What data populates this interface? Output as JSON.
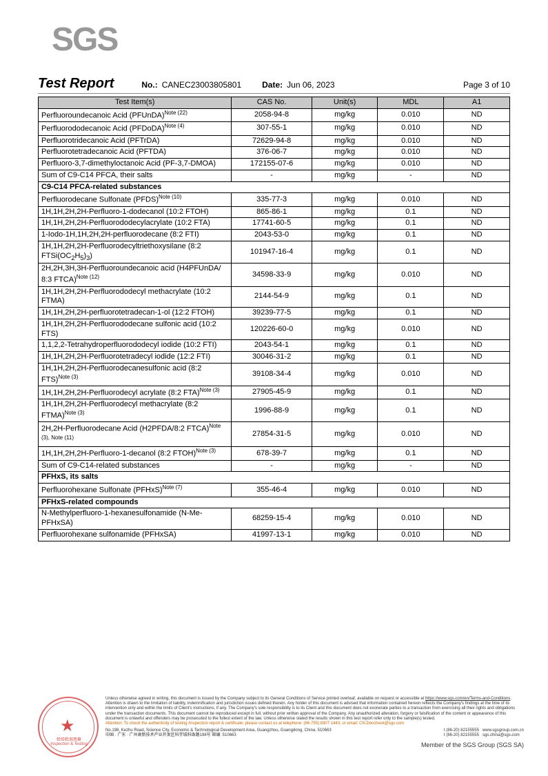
{
  "logo": {
    "text": "SGS"
  },
  "header": {
    "title": "Test Report",
    "no_label": "No.:",
    "no_value": "CANEC23003805801",
    "date_label": "Date:",
    "date_value": "Jun 06, 2023",
    "page": "Page 3 of 10"
  },
  "table": {
    "headers": [
      "Test Item(s)",
      "CAS No.",
      "Unit(s)",
      "MDL",
      "A1"
    ],
    "rows": [
      {
        "t": "d",
        "item": "Perfluoroundecanoic Acid (PFUnDA)<sup>Note (22)</sup>",
        "cas": "2058-94-8",
        "unit": "mg/kg",
        "mdl": "0.010",
        "a1": "ND"
      },
      {
        "t": "d",
        "item": "Perfluorododecanoic Acid (PFDoDA)<sup>Note (4)</sup>",
        "cas": "307-55-1",
        "unit": "mg/kg",
        "mdl": "0.010",
        "a1": "ND"
      },
      {
        "t": "d",
        "item": "Perfluorotridecanoic Acid (PFTrDA)",
        "cas": "72629-94-8",
        "unit": "mg/kg",
        "mdl": "0.010",
        "a1": "ND"
      },
      {
        "t": "d",
        "item": "Perfluorotetradecanoic Acid (PFTDA)",
        "cas": "376-06-7",
        "unit": "mg/kg",
        "mdl": "0.010",
        "a1": "ND"
      },
      {
        "t": "d",
        "item": "Perfluoro-3,7-dimethyloctanoic Acid (PF-3,7-DMOA)",
        "cas": "172155-07-6",
        "unit": "mg/kg",
        "mdl": "0.010",
        "a1": "ND"
      },
      {
        "t": "d",
        "item": "Sum of C9-C14 PFCA, their salts",
        "cas": "-",
        "unit": "mg/kg",
        "mdl": "-",
        "a1": "ND"
      },
      {
        "t": "s",
        "item": "C9-C14 PFCA-related substances"
      },
      {
        "t": "d",
        "item": "Perfluorodecane Sulfonate (PFDS)<sup>Note (10)</sup>",
        "cas": "335-77-3",
        "unit": "mg/kg",
        "mdl": "0.010",
        "a1": "ND"
      },
      {
        "t": "d",
        "item": "1H,1H,2H,2H-Perfluoro-1-dodecanol (10:2 FTOH)",
        "cas": "865-86-1",
        "unit": "mg/kg",
        "mdl": "0.1",
        "a1": "ND"
      },
      {
        "t": "d",
        "item": "1H,1H,2H,2H-Perfluorododecylacrylate (10:2 FTA)",
        "cas": "17741-60-5",
        "unit": "mg/kg",
        "mdl": "0.1",
        "a1": "ND"
      },
      {
        "t": "d",
        "item": "1-Iodo-1H,1H,2H,2H-perfluorodecane (8:2 FTI)",
        "cas": "2043-53-0",
        "unit": "mg/kg",
        "mdl": "0.1",
        "a1": "ND"
      },
      {
        "t": "d",
        "item": "1H,1H,2H,2H-Perfluorodecyltriethoxysilane (8:2 FTSi(OC<sub>2</sub>H<sub>5</sub>)<sub>3</sub>)",
        "cas": "101947-16-4",
        "unit": "mg/kg",
        "mdl": "0.1",
        "a1": "ND"
      },
      {
        "t": "d",
        "item": "2H,2H,3H,3H-Perfluoroundecanoic acid (H4PFUnDA/ 8:3 FTCA)<sup>Note (12)</sup>",
        "cas": "34598-33-9",
        "unit": "mg/kg",
        "mdl": "0.010",
        "a1": "ND"
      },
      {
        "t": "d",
        "item": "1H,1H,2H,2H-Perfluorododecyl methacrylate (10:2 FTMA)",
        "cas": "2144-54-9",
        "unit": "mg/kg",
        "mdl": "0.1",
        "a1": "ND"
      },
      {
        "t": "d",
        "item": "1H,1H,2H,2H-perfluorotetradecan-1-ol (12:2 FTOH)",
        "cas": "39239-77-5",
        "unit": "mg/kg",
        "mdl": "0.1",
        "a1": "ND"
      },
      {
        "t": "d",
        "item": "1H,1H,2H,2H-Perfluorododecane sulfonic acid (10:2 FTS)",
        "cas": "120226-60-0",
        "unit": "mg/kg",
        "mdl": "0.010",
        "a1": "ND"
      },
      {
        "t": "d",
        "item": "1,1,2,2-Tetrahydroperfluorododecyl iodide (10:2 FTI)",
        "cas": "2043-54-1",
        "unit": "mg/kg",
        "mdl": "0.1",
        "a1": "ND"
      },
      {
        "t": "d",
        "item": "1H,1H,2H,2H-Perfluorotetradecyl iodide (12:2 FTI)",
        "cas": "30046-31-2",
        "unit": "mg/kg",
        "mdl": "0.1",
        "a1": "ND"
      },
      {
        "t": "d",
        "item": "1H,1H,2H,2H-Perfluorodecanesulfonic acid (8:2 FTS)<sup>Note (3)</sup>",
        "cas": "39108-34-4",
        "unit": "mg/kg",
        "mdl": "0.010",
        "a1": "ND"
      },
      {
        "t": "d",
        "item": "1H,1H,2H,2H-Perfluorodecyl acrylate (8:2 FTA)<sup>Note (3)</sup>",
        "cas": "27905-45-9",
        "unit": "mg/kg",
        "mdl": "0.1",
        "a1": "ND"
      },
      {
        "t": "d",
        "item": "1H,1H,2H,2H-Perfluorodecyl methacrylate (8:2 FTMA)<sup>Note (3)</sup>",
        "cas": "1996-88-9",
        "unit": "mg/kg",
        "mdl": "0.1",
        "a1": "ND"
      },
      {
        "t": "d",
        "item": "2H,2H-Perfluorodecane Acid (H2PFDA/8:2 FTCA)<sup>Note (3), Note (11)</sup>",
        "cas": "27854-31-5",
        "unit": "mg/kg",
        "mdl": "0.010",
        "a1": "ND"
      },
      {
        "t": "d",
        "item": "1H,1H,2H,2H-Perfluoro-1-decanol (8:2 FTOH)<sup>Note (3)</sup>",
        "cas": "678-39-7",
        "unit": "mg/kg",
        "mdl": "0.1",
        "a1": "ND"
      },
      {
        "t": "d",
        "item": "Sum of C9-C14-related substances",
        "cas": "-",
        "unit": "mg/kg",
        "mdl": "-",
        "a1": "ND"
      },
      {
        "t": "s",
        "item": "PFHxS, its salts"
      },
      {
        "t": "d",
        "item": "Perfluorohexane Sulfonate (PFHxS)<sup>Note (7)</sup>",
        "cas": "355-46-4",
        "unit": "mg/kg",
        "mdl": "0.010",
        "a1": "ND"
      },
      {
        "t": "s",
        "item": "PFHxS-related compounds"
      },
      {
        "t": "d",
        "item": "N-Methylperfluoro-1-hexanesulfonamide (N-Me-PFHxSA)",
        "cas": "68259-15-4",
        "unit": "mg/kg",
        "mdl": "0.010",
        "a1": "ND"
      },
      {
        "t": "d",
        "item": "Perfluorohexane sulfonamide (PFHxSA)",
        "cas": "41997-13-1",
        "unit": "mg/kg",
        "mdl": "0.010",
        "a1": "ND"
      }
    ]
  },
  "footer": {
    "disclaimer1": "Unless otherwise agreed in writing, this document is issued by the Company subject to its General Conditions of Service printed overleaf, available on request or accessible at ",
    "disclaimer_link": "https://www.sgs.com/en/Terms-and-Conditions",
    "disclaimer2": ". Attention is drawn to the limitation of liability, indemnification and jurisdiction issues defined therein. Any holder of this document is advised that information contained hereon reflects the Company's findings at the time of its intervention only and within the limits of Client's instructions, if any. The Company's sole responsibility is to its Client and this document does not exonerate parties to a transaction from exercising all their rights and obligations under the transaction documents. This document cannot be reproduced except in full, without prior written approval of the Company. Any unauthorized alteration, forgery or falsification of the content or appearance of this document is unlawful and offenders may be prosecuted to the fullest extent of the law. Unless otherwise stated the results shown in this test report refer only to the sample(s) tested.",
    "attention": "Attention: To check the authenticity of testing /inspection report & certificate, please contact us at telephone: (86-755) 8307 1443, or email: CN.Doccheck@sgs.com",
    "addr_en": "No.198, Kezhu Road, Science City, Economic & Technological Development Area, Guangzhou, Guangdong, China. 510663",
    "addr_cn": "中国 · 广东 · 广州高新技术产业开发区科学城科珠路198号   邮编: 510663",
    "tel1": "t (86-20) 82155555",
    "tel2": "t (86-20) 82155555",
    "web1": "www.sgsgroup.com.cn",
    "web2": "sgs.china@sgs.com",
    "member": "Member of the SGS Group (SGS SA)",
    "stamp_text": "检验检测用章\nInspection & Testing Services"
  }
}
